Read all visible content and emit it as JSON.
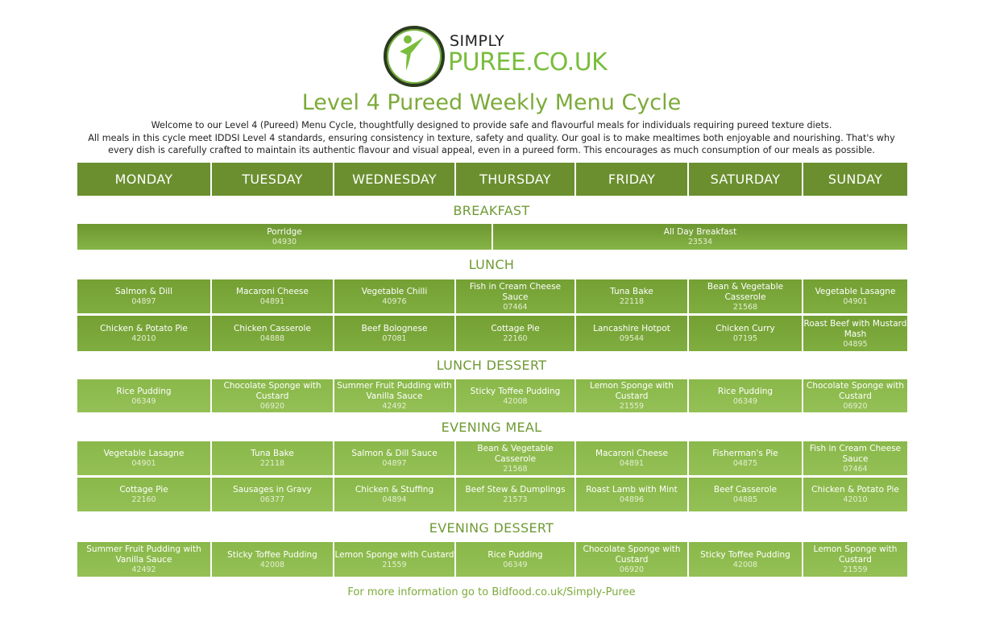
{
  "logo": {
    "line1": "SIMPLY",
    "line2": "PUREE.CO.UK"
  },
  "title": "Level 4 Pureed Weekly Menu Cycle",
  "intro": [
    "Welcome to our Level 4 (Pureed) Menu Cycle, thoughtfully designed to provide safe and flavourful meals for individuals requiring pureed texture diets.",
    "All meals in this cycle meet IDDSI Level 4 standards, ensuring consistency in texture, safety and quality. Our goal is to make mealtimes both enjoyable and nourishing. That's why",
    "every dish is carefully crafted to maintain its authentic flavour and visual appeal, even in a pureed form. This encourages as much consumption of our meals as possible."
  ],
  "days": [
    "MONDAY",
    "TUESDAY",
    "WEDNESDAY",
    "THURSDAY",
    "FRIDAY",
    "SATURDAY",
    "SUNDAY"
  ],
  "breakfast": {
    "heading": "BREAKFAST",
    "items": [
      {
        "name": "Porridge",
        "code": "04930"
      },
      {
        "name": "All Day Breakfast",
        "code": "23534"
      }
    ]
  },
  "sections": [
    {
      "heading": "LUNCH",
      "style": "dark",
      "rows": [
        [
          {
            "name": "Salmon & Dill",
            "code": "04897"
          },
          {
            "name": "Macaroni Cheese",
            "code": "04891"
          },
          {
            "name": "Vegetable Chilli",
            "code": "40976"
          },
          {
            "name": "Fish in Cream Cheese Sauce",
            "code": "07464"
          },
          {
            "name": "Tuna Bake",
            "code": "22118"
          },
          {
            "name": "Bean & Vegetable Casserole",
            "code": "21568"
          },
          {
            "name": "Vegetable Lasagne",
            "code": "04901"
          }
        ],
        [
          {
            "name": "Chicken & Potato Pie",
            "code": "42010"
          },
          {
            "name": "Chicken Casserole",
            "code": "04888"
          },
          {
            "name": "Beef Bolognese",
            "code": "07081"
          },
          {
            "name": "Cottage Pie",
            "code": "22160"
          },
          {
            "name": "Lancashire Hotpot",
            "code": "09544"
          },
          {
            "name": "Chicken Curry",
            "code": "07195"
          },
          {
            "name": "Roast Beef with Mustard Mash",
            "code": "04895"
          }
        ]
      ]
    },
    {
      "heading": "LUNCH DESSERT",
      "style": "light",
      "rows": [
        [
          {
            "name": "Rice Pudding",
            "code": "06349"
          },
          {
            "name": "Chocolate Sponge with Custard",
            "code": "06920"
          },
          {
            "name": "Summer Fruit Pudding with Vanilla Sauce",
            "code": "42492"
          },
          {
            "name": "Sticky Toffee Pudding",
            "code": "42008"
          },
          {
            "name": "Lemon Sponge with Custard",
            "code": "21559"
          },
          {
            "name": "Rice Pudding",
            "code": "06349"
          },
          {
            "name": "Chocolate Sponge with Custard",
            "code": "06920"
          }
        ]
      ]
    },
    {
      "heading": "EVENING MEAL",
      "style": "light",
      "rows": [
        [
          {
            "name": "Vegetable Lasagne",
            "code": "04901"
          },
          {
            "name": "Tuna Bake",
            "code": "22118"
          },
          {
            "name": "Salmon & Dill Sauce",
            "code": "04897"
          },
          {
            "name": "Bean & Vegetable Casserole",
            "code": "21568"
          },
          {
            "name": "Macaroni Cheese",
            "code": "04891"
          },
          {
            "name": "Fisherman's Pie",
            "code": "04875"
          },
          {
            "name": "Fish in Cream Cheese Sauce",
            "code": "07464"
          }
        ],
        [
          {
            "name": "Cottage Pie",
            "code": "22160"
          },
          {
            "name": "Sausages in Gravy",
            "code": "06377"
          },
          {
            "name": "Chicken & Stuffing",
            "code": "04894"
          },
          {
            "name": "Beef Stew & Dumplings",
            "code": "21573"
          },
          {
            "name": "Roast Lamb with Mint",
            "code": "04896"
          },
          {
            "name": "Beef Casserole",
            "code": "04885"
          },
          {
            "name": "Chicken & Potato Pie",
            "code": "42010"
          }
        ]
      ]
    },
    {
      "heading": "EVENING DESSERT",
      "style": "light",
      "rows": [
        [
          {
            "name": "Summer Fruit Pudding with Vanilla Sauce",
            "code": "42492"
          },
          {
            "name": "Sticky Toffee Pudding",
            "code": "42008"
          },
          {
            "name": "Lemon Sponge with Custard",
            "code": "21559"
          },
          {
            "name": "Rice Pudding",
            "code": "06349"
          },
          {
            "name": "Chocolate Sponge with Custard",
            "code": "06920"
          },
          {
            "name": "Sticky Toffee Pudding",
            "code": "42008"
          },
          {
            "name": "Lemon Sponge with Custard",
            "code": "21559"
          }
        ]
      ]
    }
  ],
  "footer": "For more information go to Bidfood.co.uk/Simply-Puree",
  "colors": {
    "header": "#6b8f2f",
    "cell": "#7aa63a",
    "cell_light": "#8fbc50",
    "title": "#7cab3a"
  }
}
